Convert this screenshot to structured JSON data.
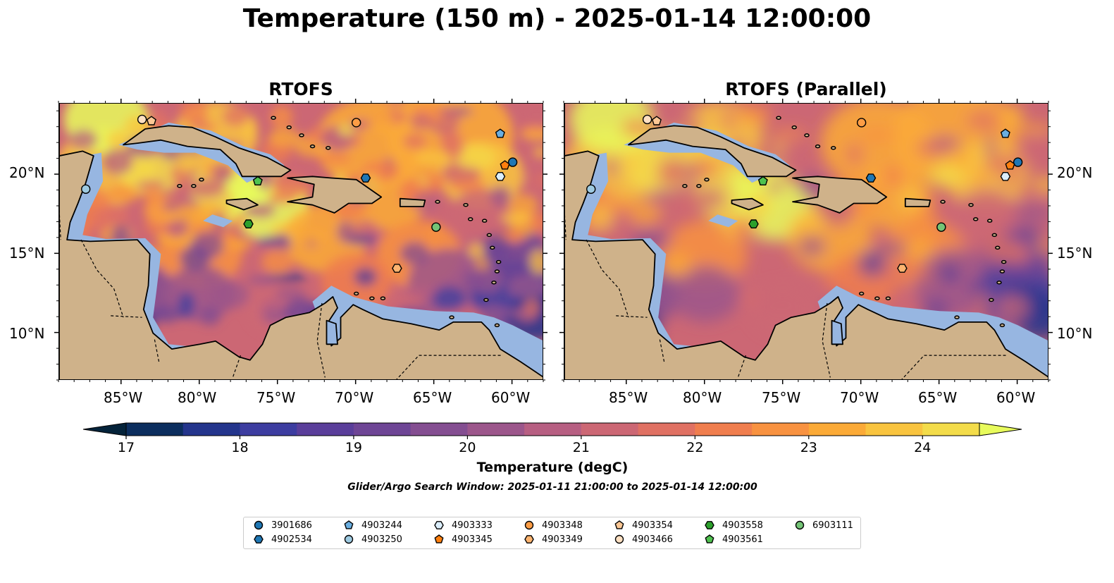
{
  "title": "Temperature (150 m) - 2025-01-14 12:00:00",
  "panels": [
    {
      "title": "RTOFS"
    },
    {
      "title": "RTOFS (Parallel)"
    }
  ],
  "map": {
    "lon_range": [
      -89.0,
      -58.0
    ],
    "lat_range": [
      7.0,
      24.5
    ],
    "x_ticks": [
      "85°W",
      "80°W",
      "75°W",
      "70°W",
      "65°W",
      "60°W"
    ],
    "y_ticks": [
      "20°N",
      "15°N",
      "10°N"
    ],
    "colors": {
      "ocean_shelf": "#97b6e1",
      "land": "#cfb28a",
      "coast": "#000000"
    }
  },
  "colorbar": {
    "label": "Temperature (degC)",
    "ticks": [
      "17",
      "18",
      "19",
      "20",
      "21",
      "22",
      "23",
      "24"
    ],
    "range": [
      16.5,
      25
    ],
    "colors": [
      "#04233a",
      "#0c2e5e",
      "#24358c",
      "#3d3da0",
      "#5a3e9a",
      "#6e4595",
      "#844e91",
      "#9c568b",
      "#b75f82",
      "#cc6774",
      "#e07163",
      "#f07e4e",
      "#f89240",
      "#fbaa37",
      "#f9c43f",
      "#f3dc4a",
      "#e8fb5c"
    ]
  },
  "search_window": "Glider/Argo Search Window: 2025-01-11 21:00:00 to 2025-01-14 12:00:00",
  "legend": [
    {
      "label": "3901686",
      "marker": "circle",
      "color": "#1f77b4"
    },
    {
      "label": "4902534",
      "marker": "hexagon",
      "color": "#1f77b4"
    },
    {
      "label": "4903244",
      "marker": "pentagon",
      "color": "#6aaee0"
    },
    {
      "label": "4903250",
      "marker": "circle",
      "color": "#9ecae1"
    },
    {
      "label": "4903333",
      "marker": "hexagon",
      "color": "#dbeefc"
    },
    {
      "label": "4903345",
      "marker": "pentagon",
      "color": "#ff7f0e"
    },
    {
      "label": "4903348",
      "marker": "circle",
      "color": "#fd9d45"
    },
    {
      "label": "4903349",
      "marker": "hexagon",
      "color": "#fdb470"
    },
    {
      "label": "4903354",
      "marker": "pentagon",
      "color": "#fdc895"
    },
    {
      "label": "4903466",
      "marker": "circle",
      "color": "#fee0c2"
    },
    {
      "label": "4903558",
      "marker": "hexagon",
      "color": "#2ca02c"
    },
    {
      "label": "4903561",
      "marker": "pentagon",
      "color": "#4fc24f"
    },
    {
      "label": "6903111",
      "marker": "circle",
      "color": "#74c476"
    }
  ],
  "floats": [
    {
      "id": "3901686",
      "lon": -60.0,
      "lat": 20.8
    },
    {
      "id": "4902534",
      "lon": -69.4,
      "lat": 19.8
    },
    {
      "id": "4903244",
      "lon": -60.8,
      "lat": 22.6
    },
    {
      "id": "4903250",
      "lon": -87.3,
      "lat": 19.1
    },
    {
      "id": "4903333",
      "lon": -60.8,
      "lat": 19.9
    },
    {
      "id": "4903345",
      "lon": -60.5,
      "lat": 20.6
    },
    {
      "id": "4903348",
      "lon": -70.0,
      "lat": 23.3
    },
    {
      "id": "4903349",
      "lon": -67.4,
      "lat": 14.1
    },
    {
      "id": "4903354",
      "lon": -83.1,
      "lat": 23.4
    },
    {
      "id": "4903466",
      "lon": -83.7,
      "lat": 23.5
    },
    {
      "id": "4903558",
      "lon": -76.9,
      "lat": 16.9
    },
    {
      "id": "4903561",
      "lon": -76.3,
      "lat": 19.6
    },
    {
      "id": "6903111",
      "lon": -64.9,
      "lat": 16.7
    }
  ]
}
